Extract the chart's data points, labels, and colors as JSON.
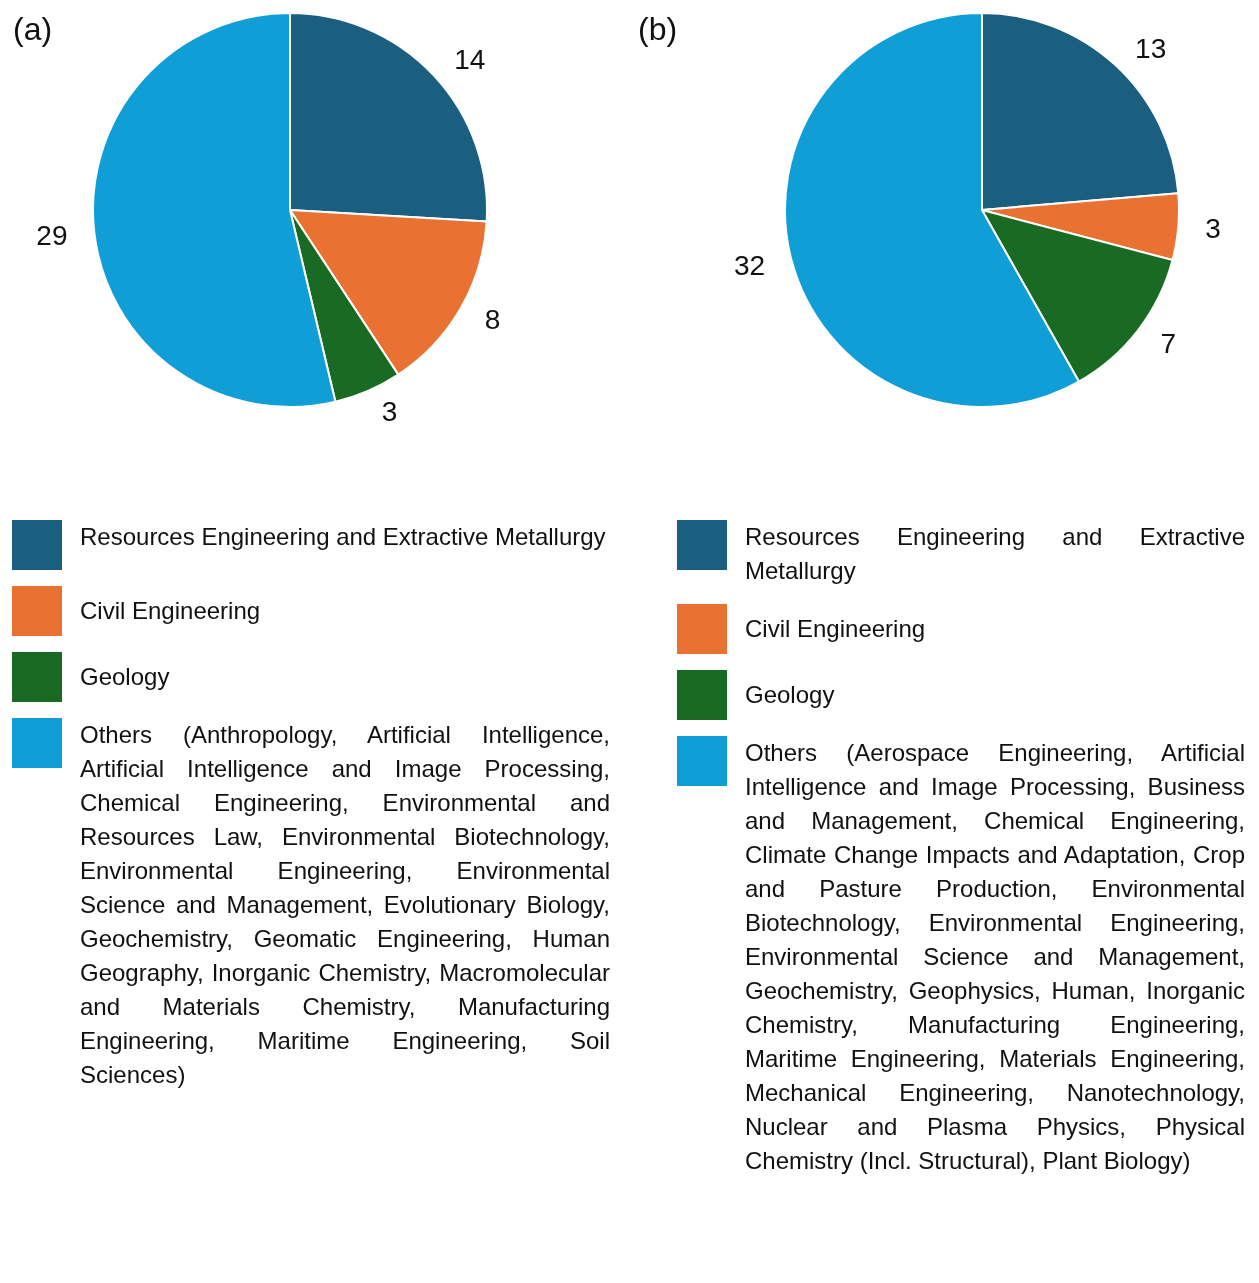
{
  "chart_data": [
    {
      "type": "pie",
      "title": "(a)",
      "categories": [
        "Resources Engineering and Extractive Metallurgy",
        "Civil Engineering",
        "Geology",
        "Others (Anthropology, Artificial Intelligence, Artificial Intelligence and Image Processing, Chemical Engineering, Environmental and Resources Law, Environmental Biotechnology, Environmental Engineering, Environmental Science and Management, Evolutionary Biology, Geochemistry, Geomatic Engineering, Human Geography, Inorganic Chemistry, Macromolecular and Materials Chemistry, Manufacturing Engineering, Maritime Engineering, Soil Sciences)"
      ],
      "values": [
        14,
        8,
        3,
        29
      ],
      "colors": [
        "#1a5e80",
        "#e97132",
        "#196b24",
        "#0f9ed5"
      ],
      "data_labels": true,
      "legend": "bottom"
    },
    {
      "type": "pie",
      "title": "(b)",
      "categories": [
        "Resources Engineering and Extractive Metallurgy",
        "Civil Engineering",
        "Geology",
        "Others (Aerospace Engineering, Artificial Intelligence and Image Processing, Business and Management, Chemical Engineering, Climate Change Impacts and Adaptation, Crop and Pasture Production, Environmental Biotechnology, Environmental Engineering, Environmental Science and Management, Geochemistry, Geophysics, Human, Inorganic Chemistry, Manufacturing Engineering, Maritime Engineering, Materials Engineering, Mechanical Engineering, Nanotechnology, Nuclear and Plasma Physics, Physical Chemistry (Incl. Structural), Plant Biology)"
      ],
      "values": [
        13,
        3,
        7,
        32
      ],
      "colors": [
        "#1a5e80",
        "#e97132",
        "#196b24",
        "#0f9ed5"
      ],
      "data_labels": true,
      "legend": "bottom"
    }
  ]
}
